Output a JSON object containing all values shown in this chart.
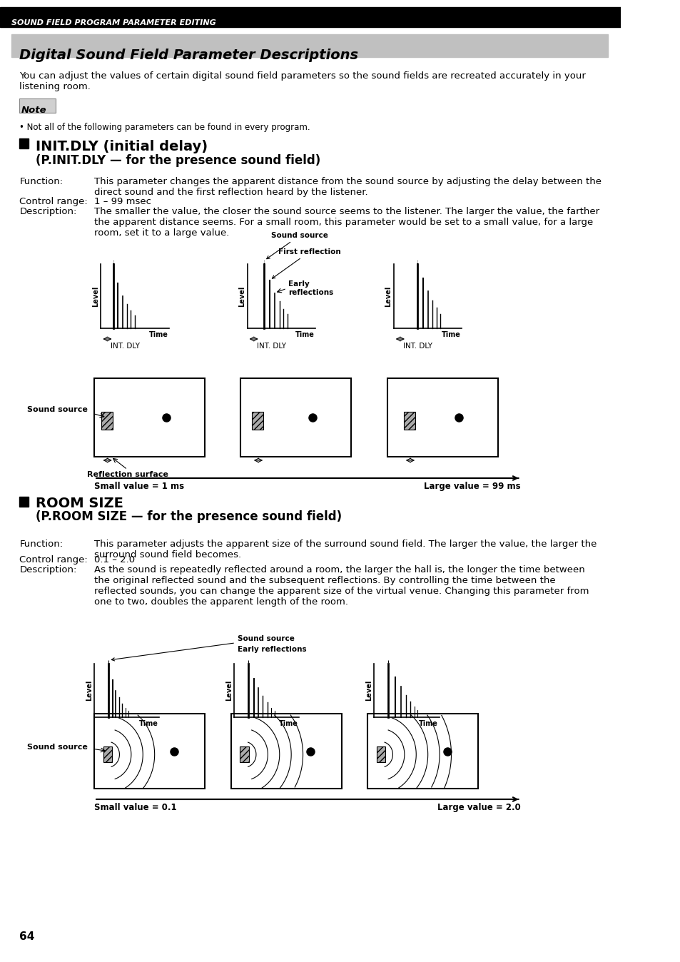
{
  "page_number": "64",
  "header_text": "SOUND FIELD PROGRAM PARAMETER EDITING",
  "header_bg": "#000000",
  "header_fg": "#ffffff",
  "title_text": "Digital Sound Field Parameter Descriptions",
  "title_bg": "#c0c0c0",
  "intro_text": "You can adjust the values of certain digital sound field parameters so the sound fields are recreated accurately in your\nlistening room.",
  "note_label": "Note",
  "note_text": "• Not all of the following parameters can be found in every program.",
  "section1_title": "INIT.DLY (initial delay)\n    (P.INIT.DLY — for the presence sound field)",
  "s1_function_label": "Function:",
  "s1_function_text": "This parameter changes the apparent distance from the sound source by adjusting the delay between the\ndirect sound and the first reflection heard by the listener.",
  "s1_control_label": "Control range:",
  "s1_control_text": "1 – 99 msec",
  "s1_desc_label": "Description:",
  "s1_desc_text": "The smaller the value, the closer the sound source seems to the listener. The larger the value, the farther\nthe apparent distance seems. For a small room, this parameter would be set to a small value, for a large\nroom, set it to a large value.",
  "s1_small_label": "Small value = 1 ms",
  "s1_large_label": "Large value = 99 ms",
  "s1_intdly_label": "INT. DLY",
  "s1_sound_source_label": "Sound source",
  "s1_first_refl_label": "First reflection",
  "s1_early_refl_label": "Early\nreflections",
  "s1_room_source_label": "Sound source",
  "s1_refl_surface_label": "Reflection surface",
  "section2_title": "ROOM SIZE\n(P.ROOM SIZE — for the presence sound field)",
  "s2_function_label": "Function:",
  "s2_function_text": "This parameter adjusts the apparent size of the surround sound field. The larger the value, the larger the\nsurround sound field becomes.",
  "s2_control_label": "Control range:",
  "s2_control_text": "0.1 – 2.0",
  "s2_desc_label": "Description:",
  "s2_desc_text": "As the sound is repeatedly reflected around a room, the larger the hall is, the longer the time between\nthe original reflected sound and the subsequent reflections. By controlling the time between the\nreflected sounds, you can change the apparent size of the virtual venue. Changing this parameter from\none to two, doubles the apparent length of the room.",
  "s2_small_label": "Small value = 0.1",
  "s2_large_label": "Large value = 2.0",
  "s2_sound_source_label": "Sound source",
  "s2_early_refl_label": "Early reflections",
  "s2_room_source_label": "Sound source",
  "bg_color": "#ffffff",
  "text_color": "#000000"
}
